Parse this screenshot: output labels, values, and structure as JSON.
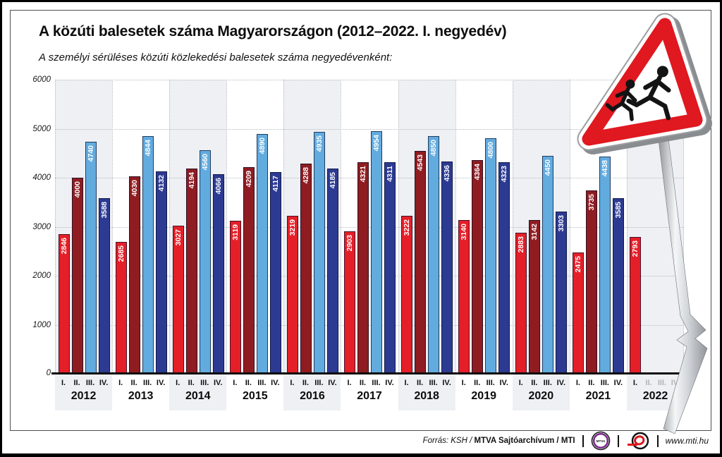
{
  "page": {
    "title": "A közúti balesetek száma Magyarországon (2012–2022. I. negyedév)",
    "subtitle": "A személyi sérüléses közúti közlekedési balesetek száma negyedévenként:"
  },
  "footer": {
    "source_italic": "Forrás: KSH / ",
    "source_bold": "MTVA Sajtóarchívum / MTI",
    "mtva_logo_text": "MTVA",
    "website": "www.mti.hu"
  },
  "sign": {
    "type": "children-crossing-warning-sign",
    "red": "#e01820"
  },
  "chart_data": {
    "type": "bar",
    "title": "A közúti balesetek száma Magyarországon (2012–2022. I. negyedév)",
    "subtitle": "A személyi sérüléses közúti közlekedési balesetek száma negyedévenként:",
    "xlabel": "",
    "ylabel": "",
    "ylim": [
      0,
      6000
    ],
    "yticks": [
      0,
      1000,
      2000,
      3000,
      4000,
      5000,
      6000
    ],
    "grid": "dotted",
    "legend": "none",
    "quarter_labels": [
      "I.",
      "II.",
      "III.",
      "IV."
    ],
    "series_colors": [
      "#e51f28",
      "#8f1c21",
      "#62abdf",
      "#2c3a92"
    ],
    "band_color_even": "#eef0f3",
    "band_color_odd": "#ffffff",
    "years": [
      {
        "year": "2012",
        "values": [
          2846,
          4000,
          4740,
          3588
        ]
      },
      {
        "year": "2013",
        "values": [
          2685,
          4030,
          4844,
          4132
        ]
      },
      {
        "year": "2014",
        "values": [
          3027,
          4194,
          4560,
          4066
        ]
      },
      {
        "year": "2015",
        "values": [
          3119,
          4209,
          4890,
          4117
        ]
      },
      {
        "year": "2016",
        "values": [
          3219,
          4288,
          4935,
          4185
        ]
      },
      {
        "year": "2017",
        "values": [
          2903,
          4321,
          4954,
          4311
        ]
      },
      {
        "year": "2018",
        "values": [
          3222,
          4543,
          4850,
          4336
        ]
      },
      {
        "year": "2019",
        "values": [
          3140,
          4364,
          4800,
          4323
        ]
      },
      {
        "year": "2020",
        "values": [
          2883,
          3142,
          4450,
          3303
        ]
      },
      {
        "year": "2021",
        "values": [
          2475,
          3735,
          4438,
          3585
        ]
      },
      {
        "year": "2022",
        "values": [
          2793
        ]
      }
    ]
  }
}
